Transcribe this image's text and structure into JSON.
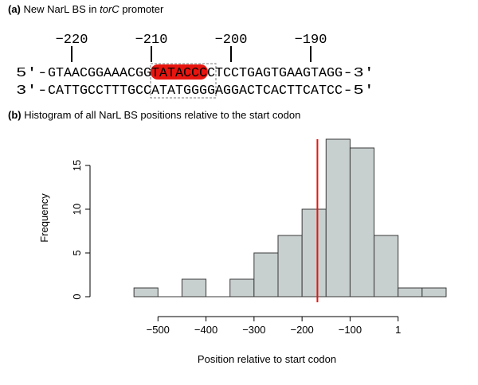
{
  "panel_a": {
    "letter": "(a)",
    "title_pre": "New NarL BS in ",
    "title_gene": "torC",
    "title_post": " promoter",
    "ruler_ticks": [
      {
        "label": "−220",
        "index": 3
      },
      {
        "label": "−210",
        "index": 13
      },
      {
        "label": "−200",
        "index": 23
      },
      {
        "label": "−190",
        "index": 33
      }
    ],
    "top_strand": {
      "prefix": "5'-",
      "sequence": "GTAACGGAAACGGTATACCCCTCCTGAGTGAAGTAGG",
      "suffix": "-3'"
    },
    "bottom_strand": {
      "prefix": "3'-",
      "sequence": "CATTGCCTTTGCCATATGGGGAGGACTCACTTCATCC",
      "suffix": "-5'"
    },
    "site": {
      "start": 13,
      "end": 20
    },
    "highlight": {
      "start": 13,
      "end": 19,
      "color": "#e8150f"
    }
  },
  "panel_b": {
    "letter": "(b)",
    "title": "Histogram of all NarL BS positions relative to the start codon"
  },
  "chart_data": {
    "type": "bar",
    "title": "Histogram of all NarL BS positions relative to the start codon",
    "xlabel": "Position relative to start codon",
    "ylabel": "Frequency",
    "bins": [
      {
        "from": -500,
        "to": -450,
        "count": 1
      },
      {
        "from": -450,
        "to": -400,
        "count": 0
      },
      {
        "from": -400,
        "to": -350,
        "count": 2
      },
      {
        "from": -350,
        "to": -300,
        "count": 0
      },
      {
        "from": -300,
        "to": -250,
        "count": 2
      },
      {
        "from": -250,
        "to": -200,
        "count": 5
      },
      {
        "from": -200,
        "to": -150,
        "count": 7
      },
      {
        "from": -150,
        "to": -100,
        "count": 10
      },
      {
        "from": -100,
        "to": -50,
        "count": 18
      },
      {
        "from": -50,
        "to": 0,
        "count": 17
      },
      {
        "from": 0,
        "to": 50,
        "count": 7
      },
      {
        "from": 50,
        "to": 100,
        "count": 1
      },
      {
        "from": 100,
        "to": 150,
        "count": 1
      }
    ],
    "xticks": [
      {
        "value": -450,
        "label": "−500"
      },
      {
        "value": -350,
        "label": "−400"
      },
      {
        "value": -250,
        "label": "−300"
      },
      {
        "value": -150,
        "label": "−200"
      },
      {
        "value": -50,
        "label": "−100"
      },
      {
        "value": 50,
        "label": "1"
      }
    ],
    "yticks": [
      0,
      5,
      10,
      15
    ],
    "ylim": [
      0,
      18
    ],
    "xlim": [
      -550,
      150
    ],
    "vline": {
      "value": -118,
      "color": "#e8150f"
    },
    "bar_color": "#c8cfcf",
    "grid": false
  }
}
